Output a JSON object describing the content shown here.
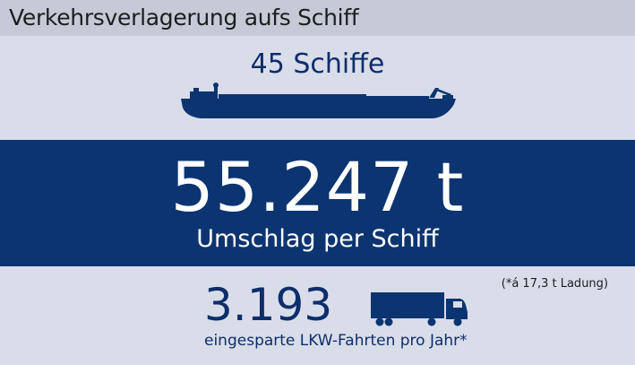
{
  "header": {
    "title": "Verkehrsverlagerung aufs Schiff"
  },
  "ships": {
    "count_label": "45 Schiffe",
    "icon": "ship-icon"
  },
  "handling": {
    "value": "55.247 t",
    "label": "Umschlag per Schiff"
  },
  "trucks": {
    "footnote": "(*á 17,3 t Ladung)",
    "value": "3.193",
    "label": "eingesparte LKW-Fahrten pro Jahr*",
    "icon": "truck-icon"
  },
  "colors": {
    "background": "#d9dde9",
    "title_bar": "#c5cad6",
    "primary_navy": "#0c3470",
    "text_navy": "#0d2e6b"
  }
}
